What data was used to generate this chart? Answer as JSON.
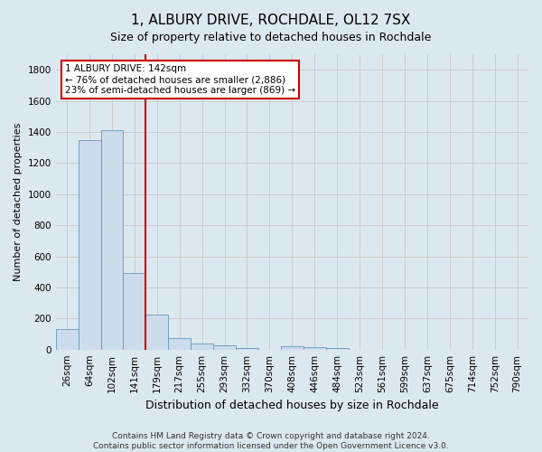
{
  "title": "1, ALBURY DRIVE, ROCHDALE, OL12 7SX",
  "subtitle": "Size of property relative to detached houses in Rochdale",
  "xlabel": "Distribution of detached houses by size in Rochdale",
  "ylabel": "Number of detached properties",
  "footer_line1": "Contains HM Land Registry data © Crown copyright and database right 2024.",
  "footer_line2": "Contains public sector information licensed under the Open Government Licence v3.0.",
  "bin_labels": [
    "26sqm",
    "64sqm",
    "102sqm",
    "141sqm",
    "179sqm",
    "217sqm",
    "255sqm",
    "293sqm",
    "332sqm",
    "370sqm",
    "408sqm",
    "446sqm",
    "484sqm",
    "523sqm",
    "561sqm",
    "599sqm",
    "637sqm",
    "675sqm",
    "714sqm",
    "752sqm",
    "790sqm"
  ],
  "bar_values": [
    130,
    1350,
    1410,
    490,
    225,
    75,
    40,
    25,
    12,
    0,
    20,
    15,
    10,
    0,
    0,
    0,
    0,
    0,
    0,
    0,
    0
  ],
  "bar_color": "#ccdcec",
  "bar_edgecolor": "#6699bb",
  "red_line_x": 3.5,
  "annotation_text": "1 ALBURY DRIVE: 142sqm\n← 76% of detached houses are smaller (2,886)\n23% of semi-detached houses are larger (869) →",
  "annotation_box_color": "#ffffff",
  "annotation_box_edgecolor": "#cc0000",
  "ylim": [
    0,
    1900
  ],
  "yticks": [
    0,
    200,
    400,
    600,
    800,
    1000,
    1200,
    1400,
    1600,
    1800
  ],
  "grid_color": "#cccccc",
  "background_color": "#dce8f0",
  "property_line_color": "#cc0000",
  "title_fontsize": 11,
  "subtitle_fontsize": 9,
  "xlabel_fontsize": 9,
  "ylabel_fontsize": 8,
  "tick_fontsize": 7.5,
  "footer_fontsize": 6.5
}
